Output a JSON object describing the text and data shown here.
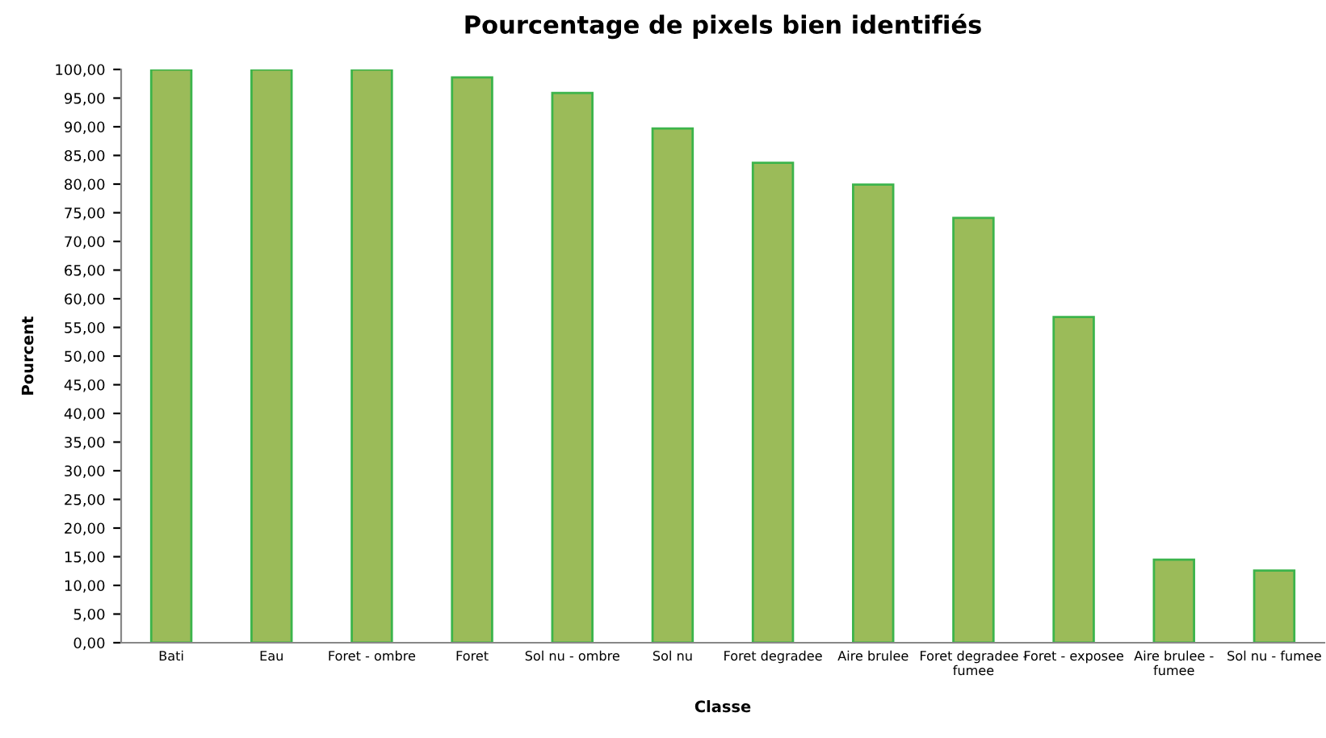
{
  "chart_data": {
    "type": "bar",
    "title": "Pourcentage de pixels bien identifiés",
    "xlabel": "Classe",
    "ylabel": "Pourcent",
    "categories": [
      "Bati",
      "Eau",
      "Foret - ombre",
      "Foret",
      "Sol nu - ombre",
      "Sol nu",
      "Foret degradee",
      "Aire brulee",
      "Foret degradee - fumee",
      "Foret - exposee",
      "Aire brulee - fumee",
      "Sol nu - fumee"
    ],
    "values": [
      100,
      100,
      100,
      98.6,
      95.9,
      89.7,
      83.7,
      79.9,
      74.1,
      56.8,
      14.5,
      12.6
    ],
    "color": "#9bbb59",
    "ylim": [
      0,
      100
    ],
    "yticks": [
      {
        "value": 0,
        "label": "0,00"
      },
      {
        "value": 5,
        "label": "5,00"
      },
      {
        "value": 10,
        "label": "10,00"
      },
      {
        "value": 15,
        "label": "15,00"
      },
      {
        "value": 20,
        "label": "20,00"
      },
      {
        "value": 25,
        "label": "25,00"
      },
      {
        "value": 30,
        "label": "30,00"
      },
      {
        "value": 35,
        "label": "35,00"
      },
      {
        "value": 40,
        "label": "40,00"
      },
      {
        "value": 45,
        "label": "45,00"
      },
      {
        "value": 50,
        "label": "50,00"
      },
      {
        "value": 55,
        "label": "55,00"
      },
      {
        "value": 60,
        "label": "60,00"
      },
      {
        "value": 65,
        "label": "65,00"
      },
      {
        "value": 70,
        "label": "70,00"
      },
      {
        "value": 75,
        "label": "75,00"
      },
      {
        "value": 80,
        "label": "80,00"
      },
      {
        "value": 85,
        "label": "85,00"
      },
      {
        "value": 90,
        "label": "90,00"
      },
      {
        "value": 95,
        "label": "95,00"
      },
      {
        "value": 100,
        "label": "100,00"
      }
    ],
    "grid": false,
    "legend": false
  }
}
